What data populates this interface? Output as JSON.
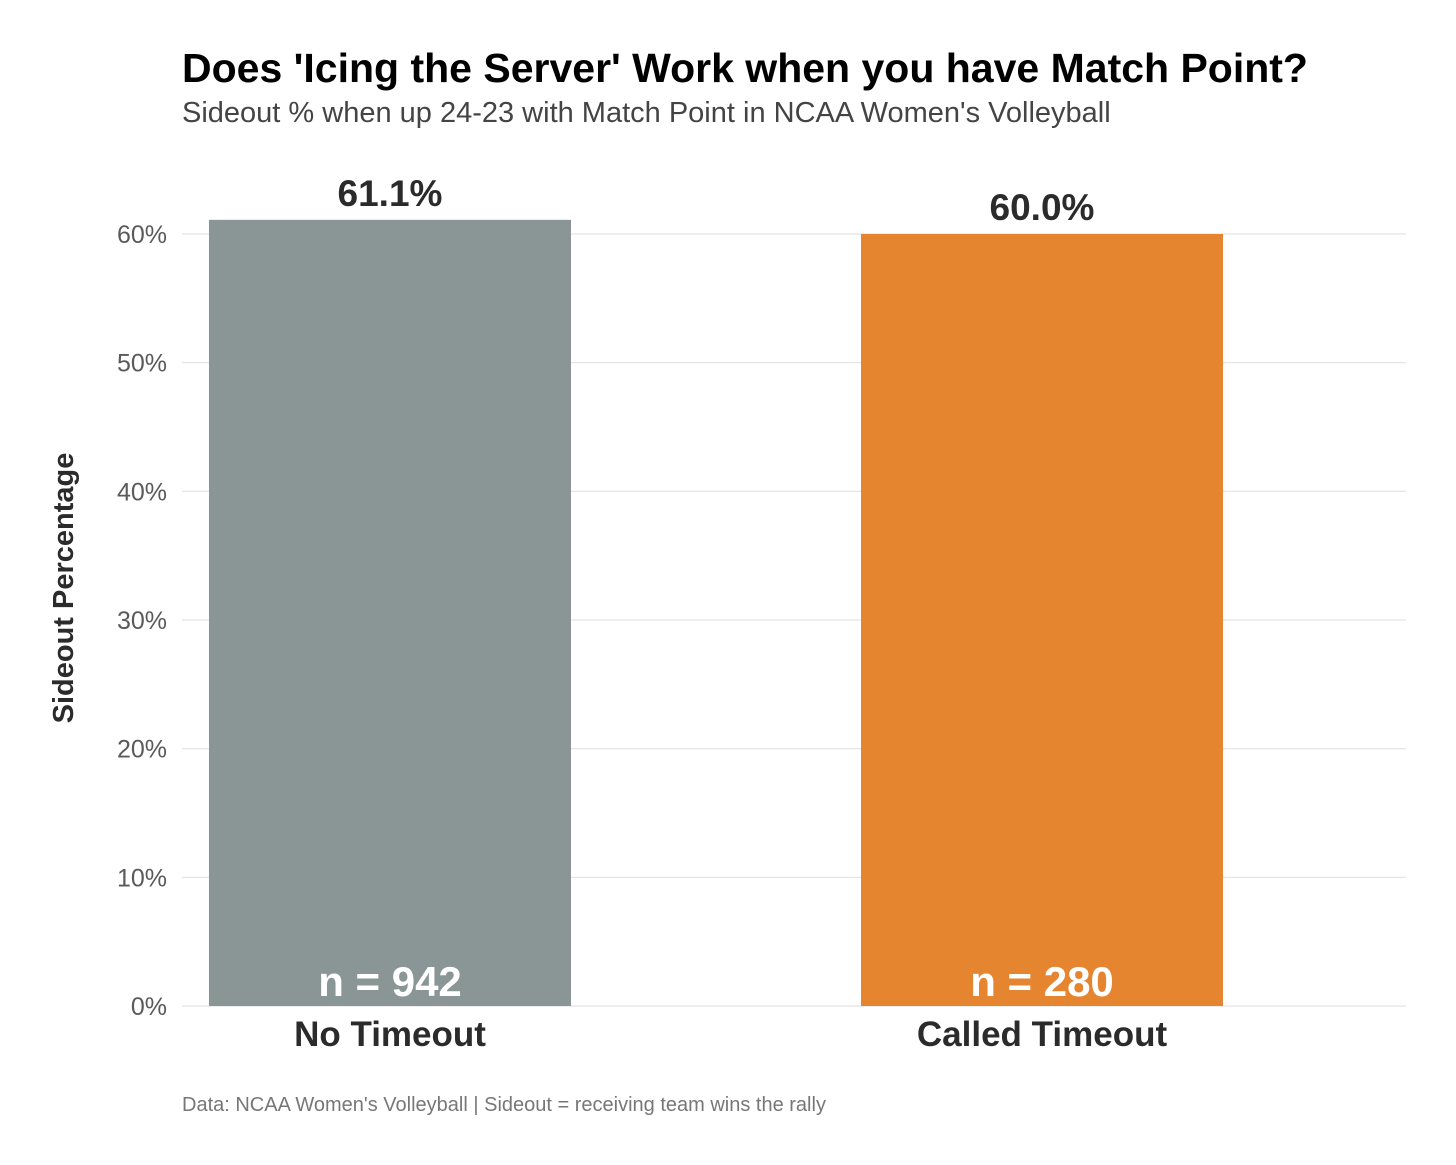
{
  "chart_data": {
    "type": "bar",
    "title": "Does 'Icing the Server' Work when you have Match Point?",
    "subtitle": "Sideout % when up 24-23 with Match Point in NCAA Women's Volleyball",
    "xlabel": "",
    "ylabel": "Sideout Percentage",
    "ylim": [
      0,
      60
    ],
    "yticks": [
      0,
      10,
      20,
      30,
      40,
      50,
      60
    ],
    "ytick_labels": [
      "0%",
      "10%",
      "20%",
      "30%",
      "40%",
      "50%",
      "60%"
    ],
    "grid": "horizontal",
    "legend": "none",
    "categories": [
      "No Timeout",
      "Called Timeout"
    ],
    "values": [
      61.1,
      60.0
    ],
    "value_labels": [
      "61.1%",
      "60.0%"
    ],
    "n_labels": [
      "n = 942",
      "n = 280"
    ],
    "colors": [
      "#8a9695",
      "#e6852f"
    ],
    "caption": "Data: NCAA Women's Volleyball | Sideout = receiving team wins the rally"
  }
}
